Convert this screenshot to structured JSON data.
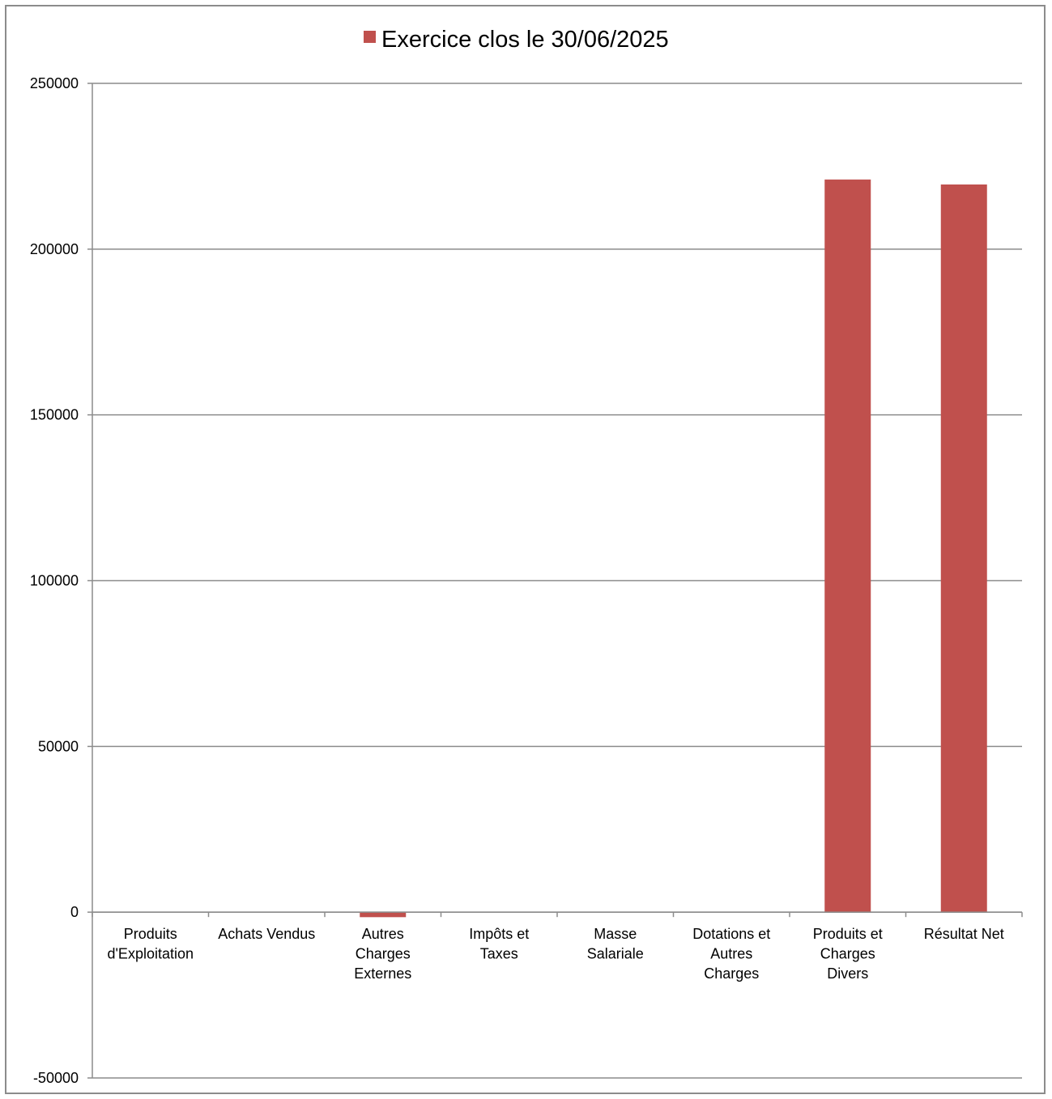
{
  "chart_data": {
    "type": "bar",
    "categories": [
      [
        "Produits",
        "d'Exploitation"
      ],
      [
        "Achats Vendus"
      ],
      [
        "Autres",
        "Charges",
        "Externes"
      ],
      [
        "Impôts et",
        "Taxes"
      ],
      [
        "Masse",
        "Salariale"
      ],
      [
        "Dotations et",
        "Autres",
        "Charges"
      ],
      [
        "Produits et",
        "Charges",
        "Divers"
      ],
      [
        "Résultat Net"
      ]
    ],
    "series": [
      {
        "name": "Exercice clos le 30/06/2025",
        "color": "#c0504d",
        "values": [
          0,
          0,
          -1500,
          0,
          0,
          0,
          221000,
          219500
        ]
      }
    ],
    "ylim": [
      -50000,
      250000
    ],
    "yticks": [
      250000,
      200000,
      150000,
      100000,
      50000,
      0,
      -50000
    ],
    "grid": true,
    "legend_position": "top"
  }
}
